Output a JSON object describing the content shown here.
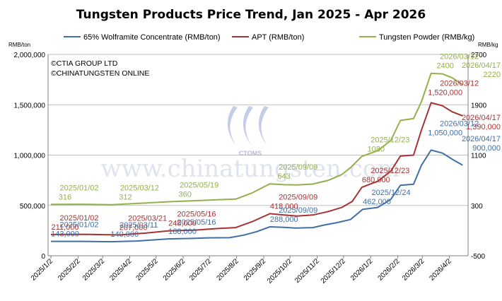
{
  "chart_data": {
    "type": "line",
    "title": "Tungsten Products Price Trend, Jan 2025 - Apr 2026",
    "left_axis": {
      "unit": "RMB/ton",
      "ylim": [
        0,
        2000000
      ],
      "ticks": [
        "0",
        "500,000",
        "1,000,000",
        "1,500,000",
        "2,000,000"
      ]
    },
    "right_axis": {
      "unit": "RMB/kg",
      "ylim": [
        -500,
        2700
      ],
      "ticks": [
        "-500",
        "300",
        "1100",
        "1900",
        "2700"
      ]
    },
    "x_ticks": [
      "2025/1/2",
      "2025/2/2",
      "2025/3/2",
      "2025/4/2",
      "2025/5/2",
      "2025/6/2",
      "2025/7/2",
      "2025/8/2",
      "2025/9/2",
      "2025/10/2",
      "2025/11/2",
      "2025/12/2",
      "2026/1/2",
      "2026/2/2",
      "2026/3/2",
      "2026/4/2"
    ],
    "legend_position": "top",
    "credits": [
      "©CTIA GROUP LTD",
      "©CHINATUNGSTEN ONLINE"
    ],
    "series": [
      {
        "name": "65% Wolframite Concentrate (RMB/ton)",
        "color": "#3f6fa6",
        "axis": "left",
        "points": [
          [
            "2025-01-02",
            143000
          ],
          [
            "2025-02-05",
            143500
          ],
          [
            "2025-03-11",
            140000
          ],
          [
            "2025-04-10",
            147000
          ],
          [
            "2025-05-16",
            168000
          ],
          [
            "2025-06-10",
            172000
          ],
          [
            "2025-07-01",
            178000
          ],
          [
            "2025-07-25",
            180000
          ],
          [
            "2025-08-10",
            205000
          ],
          [
            "2025-08-25",
            240000
          ],
          [
            "2025-09-09",
            288000
          ],
          [
            "2025-09-25",
            283000
          ],
          [
            "2025-10-08",
            275000
          ],
          [
            "2025-10-28",
            280000
          ],
          [
            "2025-11-10",
            305000
          ],
          [
            "2025-11-25",
            330000
          ],
          [
            "2025-12-10",
            360000
          ],
          [
            "2025-12-24",
            462000
          ],
          [
            "2026-01-10",
            480000
          ],
          [
            "2026-01-25",
            560000
          ],
          [
            "2026-02-05",
            700000
          ],
          [
            "2026-02-20",
            710000
          ],
          [
            "2026-03-01",
            900000
          ],
          [
            "2026-03-12",
            1050000
          ],
          [
            "2026-03-25",
            1020000
          ],
          [
            "2026-04-05",
            960000
          ],
          [
            "2026-04-17",
            900000
          ]
        ]
      },
      {
        "name": "APT (RMB/ton)",
        "color": "#a83232",
        "axis": "left",
        "points": [
          [
            "2025-01-02",
            211000
          ],
          [
            "2025-02-10",
            213000
          ],
          [
            "2025-03-21",
            207000
          ],
          [
            "2025-04-20",
            225000
          ],
          [
            "2025-05-16",
            248000
          ],
          [
            "2025-06-15",
            255000
          ],
          [
            "2025-07-10",
            270000
          ],
          [
            "2025-08-01",
            280000
          ],
          [
            "2025-08-20",
            340000
          ],
          [
            "2025-09-09",
            418000
          ],
          [
            "2025-09-25",
            405000
          ],
          [
            "2025-10-10",
            395000
          ],
          [
            "2025-10-28",
            405000
          ],
          [
            "2025-11-15",
            440000
          ],
          [
            "2025-11-30",
            480000
          ],
          [
            "2025-12-12",
            540000
          ],
          [
            "2025-12-23",
            680000
          ],
          [
            "2026-01-10",
            740000
          ],
          [
            "2026-01-25",
            840000
          ],
          [
            "2026-02-05",
            990000
          ],
          [
            "2026-02-20",
            1000000
          ],
          [
            "2026-03-01",
            1250000
          ],
          [
            "2026-03-12",
            1520000
          ],
          [
            "2026-03-25",
            1490000
          ],
          [
            "2026-04-05",
            1430000
          ],
          [
            "2026-04-17",
            1390000
          ]
        ]
      },
      {
        "name": "Tungsten Powder (RMB/kg)",
        "color": "#94b04a",
        "axis": "right",
        "points": [
          [
            "2025-01-02",
            316
          ],
          [
            "2025-02-05",
            318
          ],
          [
            "2025-03-12",
            312
          ],
          [
            "2025-04-15",
            335
          ],
          [
            "2025-05-19",
            360
          ],
          [
            "2025-06-15",
            375
          ],
          [
            "2025-07-10",
            390
          ],
          [
            "2025-08-01",
            400
          ],
          [
            "2025-08-20",
            500
          ],
          [
            "2025-09-09",
            643
          ],
          [
            "2025-09-25",
            630
          ],
          [
            "2025-10-10",
            625
          ],
          [
            "2025-10-28",
            640
          ],
          [
            "2025-11-15",
            700
          ],
          [
            "2025-11-30",
            790
          ],
          [
            "2025-12-10",
            900
          ],
          [
            "2025-12-23",
            1080
          ],
          [
            "2026-01-10",
            1170
          ],
          [
            "2026-01-25",
            1330
          ],
          [
            "2026-02-05",
            1650
          ],
          [
            "2026-02-20",
            1680
          ],
          [
            "2026-03-01",
            1950
          ],
          [
            "2026-03-12",
            2400
          ],
          [
            "2026-03-25",
            2390
          ],
          [
            "2026-04-05",
            2330
          ],
          [
            "2026-04-17",
            2220
          ]
        ]
      }
    ],
    "annotations": [
      {
        "series": 2,
        "date": "2025-01-02",
        "label": "2025/01/02",
        "value_label": "316"
      },
      {
        "series": 2,
        "date": "2025-03-12",
        "label": "2025/03/12",
        "value_label": "312"
      },
      {
        "series": 2,
        "date": "2025-05-19",
        "label": "2025/05/19",
        "value_label": "360"
      },
      {
        "series": 2,
        "date": "2025-09-09",
        "label": "2025/09/09",
        "value_label": "643"
      },
      {
        "series": 2,
        "date": "2025-12-23",
        "label": "2025/12/23",
        "value_label": "1080"
      },
      {
        "series": 2,
        "date": "2026-03-12",
        "label": "2026/03/12",
        "value_label": "2400"
      },
      {
        "series": 2,
        "date": "2026-04-17",
        "label": "2026/04/17",
        "value_label": "2220"
      },
      {
        "series": 1,
        "date": "2025-01-02",
        "label": "2025/01/02",
        "value_label": "211,000"
      },
      {
        "series": 1,
        "date": "2025-03-21",
        "label": "2025/03/21",
        "value_label": "207,000"
      },
      {
        "series": 1,
        "date": "2025-05-16",
        "label": "2025/05/16",
        "value_label": "248,000"
      },
      {
        "series": 1,
        "date": "2025-09-09",
        "label": "2025/09/09",
        "value_label": "418,000"
      },
      {
        "series": 1,
        "date": "2025-12-23",
        "label": "2025/12/23",
        "value_label": "680,000"
      },
      {
        "series": 1,
        "date": "2026-03-12",
        "label": "2026/03/12",
        "value_label": "1,520,000"
      },
      {
        "series": 1,
        "date": "2026-04-17",
        "label": "2026/04/17",
        "value_label": "1,390,000"
      },
      {
        "series": 0,
        "date": "2025-01-02",
        "label": "2025/01/02",
        "value_label": "143,000"
      },
      {
        "series": 0,
        "date": "2025-03-11",
        "label": "2025/03/11",
        "value_label": "140,000"
      },
      {
        "series": 0,
        "date": "2025-05-16",
        "label": "2025/05/16",
        "value_label": "168,000"
      },
      {
        "series": 0,
        "date": "2025-09-09",
        "label": "2025/09/09",
        "value_label": "288,000"
      },
      {
        "series": 0,
        "date": "2025-12-24",
        "label": "2025/12/24",
        "value_label": "462,000"
      },
      {
        "series": 0,
        "date": "2026-03-12",
        "label": "2026/03/12",
        "value_label": "1,050,000"
      },
      {
        "series": 0,
        "date": "2026-04-17",
        "label": "2026/04/17",
        "value_label": "900,000"
      }
    ],
    "watermark": {
      "logo_text": "CTOMS",
      "text": "www.chinatungsten.com"
    }
  }
}
